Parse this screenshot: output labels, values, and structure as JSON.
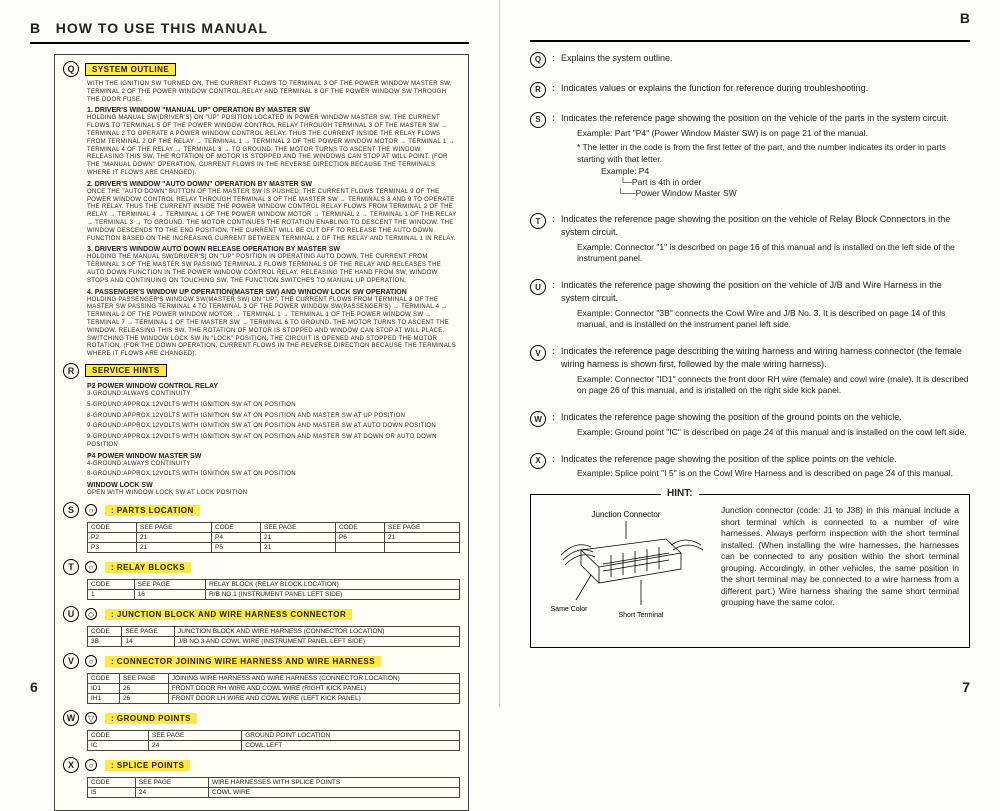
{
  "left": {
    "section_letter": "B",
    "title": "HOW TO USE THIS MANUAL",
    "page_num": "6",
    "markers": [
      "Q",
      "R",
      "S",
      "T",
      "U",
      "V",
      "W",
      "X"
    ],
    "system_outline": {
      "label": "SYSTEM OUTLINE",
      "intro": "WITH THE IGNITION SW TURNED ON, THE CURRENT FLOWS TO TERMINAL 3 OF THE POWER WINDOW MASTER SW, TERMINAL 2 OF THE POWER WINDOW CONTROL RELAY AND TERMINAL 8 OF THE POWER WINDOW SW THROUGH THE DOOR FUSE.",
      "h1": "1. DRIVER'S WINDOW \"MANUAL UP\" OPERATION BY MASTER SW",
      "p1": "HOLDING MANUAL SW(DRIVER'S) ON \"UP\" POSITION LOCATED IN POWER WINDOW MASTER SW, THE CURRENT FLOWS TO TERMINAL 5 OF THE POWER WINDOW CONTROL RELAY THROUGH TERMINAL 3 OF THE MASTER SW → TERMINAL 2 TO OPERATE A POWER WINDOW CONTROL RELAY. THUS THE CURRENT INSIDE THE RELAY FLOWS FROM TERMINAL 2 OF THE RELAY → TERMINAL 1 → TERMINAL 2 OF THE POWER WINDOW MOTOR → TERMINAL 1 → TERMINAL 4 OF THE RELAY → TERMINAL 3 → TO GROUND. THE MOTOR TURNS TO ASCENT THE WINDOW. RELEASING THIS SW, THE ROTATION OF MOTOR IS STOPPED AND THE WINDOWS CAN STOP AT WILL POINT. (FOR THE \"MANUAL DOWN\" OPERATION, CURRENT FLOWS IN THE REVERSE DIRECTION BECAUSE THE TERMINALS WHERE IT FLOWS ARE CHANGED).",
      "h2": "2. DRIVER'S WINDOW \"AUTO DOWN\" OPERATION BY MASTER SW",
      "p2": "ONCE THE \"AUTO DOWN\" BUTTON OF THE MASTER SW IS PUSHED, THE CURRENT FLOWS TERMINAL 9 OF THE POWER WINDOW CONTROL RELAY THROUGH TERMINAL 3 OF THE MASTER SW → TERMINALS 8 AND 9 TO OPERATE THE RELAY. THUS THE CURRENT INSIDE THE POWER WINDOW CONTROL RELAY FLOWS FROM TERMINAL 2 OF THE RELAY → TERMINAL 4 → TERMINAL 1 OF THE POWER WINDOW MOTOR → TERMINAL 2 → TERMINAL 1 OF THE RELAY → TERMINAL 3 → TO GROUND. THE MOTOR CONTINUES THE ROTATION ENABLING TO DESCENT THE WINDOW. THE WINDOW DESCENDS TO THE END POSITION, THE CURRENT WILL BE CUT OFF TO RELEASE THE AUTO DOWN FUNCTION BASED ON THE INCREASING CURRENT BETWEEN TERMINAL 2 OF THE RELAY AND TERMINAL 1 IN RELAY.",
      "h3": "3. DRIVER'S WINDOW AUTO DOWN RELEASE OPERATION BY MASTER SW",
      "p3": "HOLDING THE MANUAL SW(DRIVER'S) ON \"UP\" POSITION IN OPERATING AUTO DOWN, THE CURRENT FROM TERMINAL 3 OF THE MASTER SW PASSING TERMINAL 2 FLOWS TERMINAL 5 OF THE RELAY AND RELEASES THE AUTO DOWN FUNCTION IN THE POWER WINDOW CONTROL RELAY. RELEASING THE HAND FROM SW, WINDOW STOPS AND CONTINUING ON TOUCHING SW, THE FUNCTION SWITCHES TO MANUAL UP OPERATION.",
      "h4": "4. PASSENGER'S WINDOW UP OPERATION(MASTER SW) AND WINDOW LOCK SW OPERATION",
      "p4": "HOLDING PASSENGER'S WINDOW SW(MASTER SW) ON \"UP\", THE CURRENT FLOWS FROM TERMINAL 3 OF THE MASTER SW PASSING TERMINAL 4 TO TERMINAL 3 OF THE POWER WINDOW SW(PASSENGER'S) → TERMINAL 4 → TERMINAL 2 OF THE POWER WINDOW MOTOR → TERMINAL 1 → TERMINAL 1 OF THE POWER WINDOW SW → TERMINAL 7 → TERMINAL 1 OF THE MASTER SW → TERMINAL 6 TO GROUND. THE MOTOR TURNS TO ASCENT THE WINDOW. RELEASING THIS SW, THE ROTATION OF MOTOR IS STOPPED AND WINDOW CAN STOP AT WILL PLACE. SWITCHING THE WINDOW LOCK SW IN \"LOCK\" POSITION, THE CIRCUIT IS OPENED AND STOPPED THE MOTOR ROTATION. (FOR THE DOWN OPERATION, CURRENT FLOWS IN THE REVERSE DIRECTION BECAUSE THE TERMINALS WHERE IT FLOWS ARE CHANGED).",
      "hints_label": "SERVICE HINTS",
      "hints_h1": "P2 POWER WINDOW CONTROL RELAY",
      "hints_l1": "3-GROUND:ALWAYS CONTINUITY",
      "hints_l2": "5-GROUND:APPROX.12VOLTS WITH IGNITION SW AT ON POSITION",
      "hints_l3": "8-GROUND:APPROX.12VOLTS WITH IGNITION SW AT ON POSITION AND MASTER SW AT UP POSITION",
      "hints_l4": "9-GROUND:APPROX.12VOLTS WITH IGNITION SW AT ON POSITION AND MASTER SW AT AUTO DOWN POSITION",
      "hints_l5": "9-GROUND:APPROX.12VOLTS WITH IGNITION SW AT ON POSITION AND MASTER SW AT DOWN OR AUTO DOWN POSITION",
      "hints_h2": "P4 POWER WINDOW MASTER SW",
      "hints_l6": "4-GROUND:ALWAYS CONTINUITY",
      "hints_l7": "8-GROUND:APPROX.12VOLTS WITH IGNITION SW AT ON POSITION",
      "hints_h3": "WINDOW LOCK SW",
      "hints_l8": "OPEN WITH WINDOW LOCK SW AT LOCK POSITION"
    },
    "parts_location": {
      "label": ": PARTS LOCATION",
      "headers": [
        "CODE",
        "SEE PAGE",
        "CODE",
        "SEE PAGE",
        "CODE",
        "SEE PAGE"
      ],
      "rows": [
        [
          "P2",
          "21",
          "P4",
          "21",
          "P6",
          "21"
        ],
        [
          "P3",
          "21",
          "P5",
          "21",
          "",
          ""
        ]
      ]
    },
    "relay_blocks": {
      "label": ": RELAY BLOCKS",
      "headers": [
        "CODE",
        "SEE PAGE",
        "RELAY BLOCK (RELAY BLOCK LOCATION)"
      ],
      "rows": [
        [
          "1",
          "16",
          "R/B NO.1 (INSTRUMENT PANEL LEFT SIDE)"
        ]
      ]
    },
    "junction": {
      "label": ": JUNCTION BLOCK AND WIRE HARNESS CONNECTOR",
      "headers": [
        "CODE",
        "SEE PAGE",
        "JUNCTION BLOCK AND WIRE HARNESS (CONNECTOR LOCATION)"
      ],
      "rows": [
        [
          "3B",
          "14",
          "J/B NO.3 AND COWL WIRE (INSTRUMENT PANEL LEFT SIDE)"
        ]
      ]
    },
    "connector": {
      "label": ": CONNECTOR JOINING WIRE HARNESS AND WIRE HARNESS",
      "headers": [
        "CODE",
        "SEE PAGE",
        "JOINING WIRE HARNESS AND WIRE HARNESS (CONNECTOR LOCATION)"
      ],
      "rows": [
        [
          "ID1",
          "26",
          "FRONT DOOR RH WIRE AND COWL WIRE (RIGHT KICK PANEL)"
        ],
        [
          "IH1",
          "26",
          "FRONT DOOR LH WIRE AND COWL WIRE (LEFT KICK PANEL)"
        ]
      ]
    },
    "ground": {
      "label": ": GROUND POINTS",
      "headers": [
        "CODE",
        "SEE PAGE",
        "GROUND POINT LOCATION"
      ],
      "rows": [
        [
          "IC",
          "24",
          "COWL LEFT"
        ]
      ]
    },
    "splice": {
      "label": ": SPLICE POINTS",
      "headers": [
        "CODE",
        "SEE PAGE",
        "WIRE HARNESSES WITH SPLICE POINTS"
      ],
      "rows": [
        [
          "I5",
          "24",
          "COWL WIRE"
        ]
      ]
    }
  },
  "right": {
    "section_letter": "B",
    "page_num": "7",
    "items": [
      {
        "m": "Q",
        "t": "Explains the system outline."
      },
      {
        "m": "R",
        "t": "Indicates values or explains the function for reference during troubleshooting."
      },
      {
        "m": "S",
        "t": "Indicates the reference page showing the position on the vehicle of the parts in the system circuit.",
        "ex": "Example: Part \"P4\" (Power Window Master SW) is on page 21 of the manual.",
        "ex2": "* The letter in the code is from the first letter of the part, and the number indicates its order in parts starting with that letter.",
        "p4": "Example: P4",
        "p4a": "Part is 4th in order",
        "p4b": "Power Window Master SW"
      },
      {
        "m": "T",
        "t": "Indicates the reference page showing the position on the vehicle of Relay Block Connectors in the system circuit.",
        "ex": "Example: Connector \"1\" is described on page 16 of this manual and is installed on the left side of the instrument panel."
      },
      {
        "m": "U",
        "t": "Indicates the reference page showing the position on the vehicle of J/B and Wire Harness in the system circuit.",
        "ex": "Example: Connector \"3B\" connects the Cowl Wire and J/B No. 3. It is described on page 14 of this manual, and is installed on the instrument panel left side."
      },
      {
        "m": "V",
        "t": "Indicates the reference page describing the wiring harness and wiring harness connector (the female wiring harness is shown first, followed by the male wiring harness).",
        "ex": "Example: Connector \"ID1\" connects the front door RH wire (female) and cowl wire (male). It is described on page 26 of this manual, and is installed on the right side kick panel."
      },
      {
        "m": "W",
        "t": "Indicates the reference page showing the position of the ground points on the vehicle.",
        "ex": "Example: Ground point \"IC\" is described on page 24 of this manual and is installed on the cowl left side."
      },
      {
        "m": "X",
        "t": "Indicates the reference page showing the position of the splice points on the vehicle.",
        "ex": "Example: Splice point \"I 5\" is on the Cowl Wire Harness and is described on page 24 of this manual."
      }
    ],
    "hint": {
      "label": "HINT:",
      "svg_jc": "Junction Connector",
      "svg_sc": "Same Color",
      "svg_st": "Short Terminal",
      "text": "Junction connector (code: J1 to J38) in this manual include a short terminal which is connected to a number of wire harnesses. Always perform inspection with the short terminal installed. (When installing the wire harnesses, the harnesses can be connected to any position within the short terminal grouping. Accordingly, in other vehicles, the same position in the short terminal may be connected to a wire harness from a different part.) Wire harness sharing the same short terminal grouping have the same color."
    }
  }
}
